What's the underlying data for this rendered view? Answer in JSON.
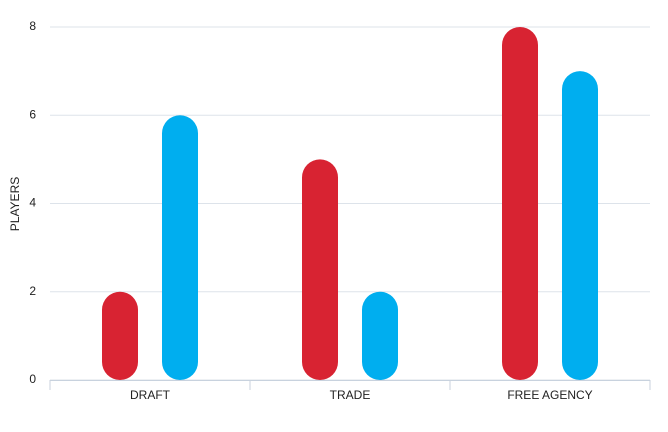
{
  "chart_data": {
    "type": "bar",
    "y_label": "PLAYERS",
    "categories": [
      "DRAFT",
      "TRADE",
      "FREE AGENCY"
    ],
    "series": [
      {
        "color": "#d82332",
        "values": [
          2,
          5,
          8
        ]
      },
      {
        "color": "#00aeef",
        "values": [
          6,
          2,
          7
        ]
      }
    ],
    "ylim": [
      0,
      8
    ],
    "yticks": [
      0,
      2,
      4,
      6,
      8
    ],
    "grid": true
  }
}
